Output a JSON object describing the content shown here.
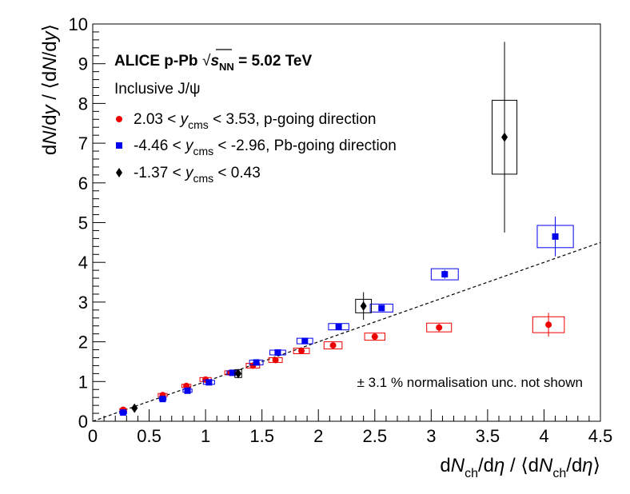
{
  "chart_data": {
    "type": "scatter",
    "xlabel": "dN_ch/dη / ⟨dN_ch/dη⟩",
    "ylabel": "dN/dy / ⟨dN/dy⟩",
    "xlim": [
      0,
      4.5
    ],
    "ylim": [
      0,
      10
    ],
    "x_ticks": [
      "0",
      "0.5",
      "1",
      "1.5",
      "2",
      "2.5",
      "3",
      "3.5",
      "4",
      "4.5"
    ],
    "y_ticks": [
      "0",
      "1",
      "2",
      "3",
      "4",
      "5",
      "6",
      "7",
      "8",
      "9",
      "10"
    ],
    "grid": false,
    "experiment": "ALICE p-Pb",
    "energy_label": "√s_NN = 5.02 TeV",
    "subtitle": "Inclusive J/ψ",
    "note": "± 3.1 % normalisation unc. not shown",
    "reference_line": {
      "style": "dashed",
      "slope": 1,
      "intercept": 0
    },
    "series": [
      {
        "name": "2.03 < y_cms < 3.53, p-going direction",
        "color": "#ee0000",
        "marker": "circle",
        "points": [
          {
            "x": 0.27,
            "y": 0.29,
            "err": 0.02,
            "syst_dx": 0.03,
            "syst_dy": 0.03
          },
          {
            "x": 0.62,
            "y": 0.66,
            "err": 0.03,
            "syst_dx": 0.04,
            "syst_dy": 0.04
          },
          {
            "x": 0.83,
            "y": 0.89,
            "err": 0.03,
            "syst_dx": 0.04,
            "syst_dy": 0.04
          },
          {
            "x": 1.0,
            "y": 1.05,
            "err": 0.03,
            "syst_dx": 0.05,
            "syst_dy": 0.05
          },
          {
            "x": 1.22,
            "y": 1.22,
            "err": 0.03,
            "syst_dx": 0.05,
            "syst_dy": 0.05
          },
          {
            "x": 1.42,
            "y": 1.4,
            "err": 0.04,
            "syst_dx": 0.06,
            "syst_dy": 0.06
          },
          {
            "x": 1.62,
            "y": 1.54,
            "err": 0.04,
            "syst_dx": 0.06,
            "syst_dy": 0.06
          },
          {
            "x": 1.85,
            "y": 1.77,
            "err": 0.05,
            "syst_dx": 0.07,
            "syst_dy": 0.07
          },
          {
            "x": 2.13,
            "y": 1.91,
            "err": 0.06,
            "syst_dx": 0.08,
            "syst_dy": 0.09
          },
          {
            "x": 2.5,
            "y": 2.13,
            "err": 0.07,
            "syst_dx": 0.09,
            "syst_dy": 0.09
          },
          {
            "x": 3.07,
            "y": 2.36,
            "err": 0.1,
            "syst_dx": 0.11,
            "syst_dy": 0.11
          },
          {
            "x": 4.04,
            "y": 2.43,
            "err": 0.3,
            "syst_dx": 0.14,
            "syst_dy": 0.2
          }
        ]
      },
      {
        "name": "-4.46 < y_cms < -2.96, Pb-going direction",
        "color": "#0000ee",
        "marker": "square",
        "points": [
          {
            "x": 0.27,
            "y": 0.22,
            "err": 0.02,
            "syst_dx": 0.03,
            "syst_dy": 0.03
          },
          {
            "x": 0.62,
            "y": 0.56,
            "err": 0.03,
            "syst_dx": 0.03,
            "syst_dy": 0.03
          },
          {
            "x": 0.84,
            "y": 0.77,
            "err": 0.03,
            "syst_dx": 0.04,
            "syst_dy": 0.04
          },
          {
            "x": 1.03,
            "y": 0.98,
            "err": 0.03,
            "syst_dx": 0.05,
            "syst_dy": 0.05
          },
          {
            "x": 1.24,
            "y": 1.22,
            "err": 0.03,
            "syst_dx": 0.05,
            "syst_dy": 0.05
          },
          {
            "x": 1.45,
            "y": 1.48,
            "err": 0.04,
            "syst_dx": 0.06,
            "syst_dy": 0.06
          },
          {
            "x": 1.64,
            "y": 1.73,
            "err": 0.04,
            "syst_dx": 0.07,
            "syst_dy": 0.06
          },
          {
            "x": 1.88,
            "y": 2.02,
            "err": 0.05,
            "syst_dx": 0.07,
            "syst_dy": 0.07
          },
          {
            "x": 2.18,
            "y": 2.38,
            "err": 0.05,
            "syst_dx": 0.09,
            "syst_dy": 0.08
          },
          {
            "x": 2.56,
            "y": 2.85,
            "err": 0.07,
            "syst_dx": 0.1,
            "syst_dy": 0.1
          },
          {
            "x": 3.12,
            "y": 3.7,
            "err": 0.11,
            "syst_dx": 0.12,
            "syst_dy": 0.14
          },
          {
            "x": 4.1,
            "y": 4.65,
            "err": 0.5,
            "syst_dx": 0.16,
            "syst_dy": 0.28
          }
        ]
      },
      {
        "name": "-1.37 < y_cms < 0.43",
        "color": "#000000",
        "marker": "diamond",
        "points": [
          {
            "x": 0.37,
            "y": 0.33,
            "err": 0.05,
            "syst_dx": 0.02,
            "syst_dy": 0.02
          },
          {
            "x": 1.29,
            "y": 1.2,
            "err": 0.1,
            "syst_dx": 0.03,
            "syst_dy": 0.1
          },
          {
            "x": 2.4,
            "y": 2.9,
            "err": 0.35,
            "syst_dx": 0.07,
            "syst_dy": 0.17
          },
          {
            "x": 3.65,
            "y": 7.15,
            "err": 2.4,
            "syst_dx": 0.11,
            "syst_dy": 0.93
          }
        ]
      }
    ],
    "legend": [
      {
        "series": 0,
        "lo": "2.03 < ",
        "var": "y",
        "sub": "cms",
        "hi": " < 3.53, p-going direction"
      },
      {
        "series": 1,
        "lo": "-4.46 < ",
        "var": "y",
        "sub": "cms",
        "hi": " < -2.96, Pb-going direction"
      },
      {
        "series": 2,
        "lo": "-1.37 < ",
        "var": "y",
        "sub": "cms",
        "hi": " < 0.43"
      }
    ]
  }
}
